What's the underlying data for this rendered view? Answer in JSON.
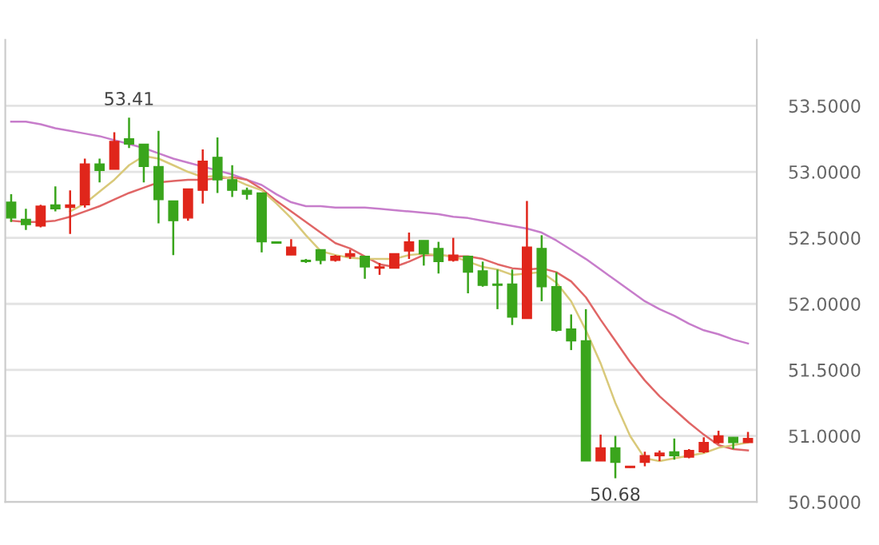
{
  "chart_data": {
    "type": "candlestick",
    "categories": [
      null,
      null,
      null,
      null,
      null,
      null,
      null,
      null,
      null,
      null,
      null,
      null,
      null,
      null,
      null,
      null,
      null,
      null,
      null,
      null,
      null,
      null,
      null,
      null,
      null,
      null,
      null,
      null,
      null,
      null,
      null,
      null,
      null,
      null,
      null,
      null,
      null,
      null,
      null,
      null,
      null,
      null,
      null,
      null,
      null,
      null,
      null,
      null,
      null,
      null,
      null
    ],
    "ohlc": [
      [
        52.77,
        52.83,
        52.62,
        52.65
      ],
      [
        52.64,
        52.72,
        52.56,
        52.6
      ],
      [
        52.59,
        52.75,
        52.58,
        52.74
      ],
      [
        52.75,
        52.89,
        52.7,
        52.72
      ],
      [
        52.73,
        52.86,
        52.53,
        52.75
      ],
      [
        52.75,
        53.1,
        52.73,
        53.06
      ],
      [
        53.06,
        53.1,
        52.92,
        53.01
      ],
      [
        53.02,
        53.3,
        53.02,
        53.23
      ],
      [
        53.25,
        53.41,
        53.18,
        53.21
      ],
      [
        53.21,
        53.21,
        52.92,
        53.04
      ],
      [
        53.04,
        53.31,
        52.61,
        52.79
      ],
      [
        52.78,
        52.78,
        52.37,
        52.63
      ],
      [
        52.65,
        52.87,
        52.63,
        52.87
      ],
      [
        52.86,
        53.17,
        52.76,
        53.08
      ],
      [
        53.11,
        53.26,
        52.84,
        52.94
      ],
      [
        52.94,
        53.05,
        52.81,
        52.86
      ],
      [
        52.86,
        52.88,
        52.79,
        52.83
      ],
      [
        52.84,
        52.84,
        52.39,
        52.47
      ],
      [
        52.47,
        52.47,
        52.46,
        52.46
      ],
      [
        52.37,
        52.49,
        52.37,
        52.43
      ],
      [
        52.33,
        52.34,
        52.31,
        52.32
      ],
      [
        52.41,
        52.41,
        52.3,
        52.33
      ],
      [
        52.33,
        52.37,
        52.32,
        52.36
      ],
      [
        52.36,
        52.41,
        52.34,
        52.38
      ],
      [
        52.36,
        52.36,
        52.19,
        52.28
      ],
      [
        52.27,
        52.31,
        52.22,
        52.28
      ],
      [
        52.27,
        52.38,
        52.27,
        52.38
      ],
      [
        52.4,
        52.54,
        52.34,
        52.47
      ],
      [
        52.48,
        52.48,
        52.29,
        52.38
      ],
      [
        52.42,
        52.47,
        52.23,
        52.32
      ],
      [
        52.33,
        52.5,
        52.32,
        52.37
      ],
      [
        52.36,
        52.36,
        52.08,
        52.24
      ],
      [
        52.25,
        52.32,
        52.13,
        52.14
      ],
      [
        52.15,
        52.26,
        51.96,
        52.14
      ],
      [
        52.15,
        52.26,
        51.84,
        51.9
      ],
      [
        51.89,
        52.78,
        51.89,
        52.43
      ],
      [
        52.42,
        52.52,
        52.02,
        52.13
      ],
      [
        52.13,
        52.24,
        51.79,
        51.8
      ],
      [
        51.81,
        51.92,
        51.65,
        51.72
      ],
      [
        51.72,
        51.96,
        50.81,
        50.81
      ],
      [
        50.81,
        51.01,
        50.81,
        50.91
      ],
      [
        50.91,
        51.0,
        50.68,
        50.8
      ],
      [
        50.76,
        50.77,
        50.76,
        50.77
      ],
      [
        50.8,
        50.88,
        50.77,
        50.85
      ],
      [
        50.85,
        50.89,
        50.81,
        50.87
      ],
      [
        50.88,
        50.98,
        50.82,
        50.85
      ],
      [
        50.84,
        50.9,
        50.83,
        50.89
      ],
      [
        50.88,
        50.99,
        50.87,
        50.95
      ],
      [
        50.95,
        51.04,
        50.94,
        51.0
      ],
      [
        50.99,
        50.99,
        50.9,
        50.95
      ],
      [
        50.95,
        51.03,
        50.95,
        50.98
      ]
    ],
    "colors": [
      "#3aa51c",
      "#3aa51c",
      "#e0261b",
      "#3aa51c",
      "#e0261b",
      "#e0261b",
      "#3aa51c",
      "#e0261b",
      "#3aa51c",
      "#3aa51c",
      "#3aa51c",
      "#3aa51c",
      "#e0261b",
      "#e0261b",
      "#3aa51c",
      "#3aa51c",
      "#3aa51c",
      "#3aa51c",
      "#3aa51c",
      "#e0261b",
      "#3aa51c",
      "#3aa51c",
      "#e0261b",
      "#e0261b",
      "#3aa51c",
      "#e0261b",
      "#e0261b",
      "#e0261b",
      "#3aa51c",
      "#3aa51c",
      "#e0261b",
      "#3aa51c",
      "#3aa51c",
      "#3aa51c",
      "#3aa51c",
      "#e0261b",
      "#3aa51c",
      "#3aa51c",
      "#3aa51c",
      "#3aa51c",
      "#e0261b",
      "#3aa51c",
      "#e0261b",
      "#e0261b",
      "#e0261b",
      "#3aa51c",
      "#e0261b",
      "#e0261b",
      "#e0261b",
      "#3aa51c",
      "#e0261b"
    ],
    "series": [
      {
        "type": "line",
        "color": "#c77dcb",
        "values": [
          53.38,
          53.38,
          53.36,
          53.33,
          53.31,
          53.29,
          53.27,
          53.24,
          53.21,
          53.18,
          53.14,
          53.1,
          53.07,
          53.04,
          53.01,
          52.98,
          52.94,
          52.9,
          52.83,
          52.77,
          52.74,
          52.74,
          52.73,
          52.73,
          52.73,
          52.72,
          52.71,
          52.7,
          52.69,
          52.68,
          52.66,
          52.65,
          52.63,
          52.61,
          52.59,
          52.57,
          52.54,
          52.48,
          52.41,
          52.34,
          52.26,
          52.18,
          52.1,
          52.02,
          51.96,
          51.91,
          51.85,
          51.8,
          51.77,
          51.73,
          51.7
        ]
      },
      {
        "type": "line",
        "color": "#e06666",
        "values": [
          52.63,
          52.62,
          52.62,
          52.63,
          52.66,
          52.7,
          52.74,
          52.79,
          52.84,
          52.88,
          52.92,
          52.93,
          52.94,
          52.94,
          52.95,
          52.96,
          52.94,
          52.87,
          52.78,
          52.7,
          52.62,
          52.54,
          52.46,
          52.42,
          52.36,
          52.3,
          52.28,
          52.32,
          52.37,
          52.37,
          52.36,
          52.36,
          52.34,
          52.3,
          52.27,
          52.26,
          52.27,
          52.24,
          52.17,
          52.05,
          51.88,
          51.72,
          51.56,
          51.42,
          51.3,
          51.2,
          51.1,
          51.01,
          50.93,
          50.9,
          50.89
        ]
      },
      {
        "type": "line",
        "color": "#d9c97a",
        "values": [
          null,
          null,
          null,
          null,
          52.7,
          52.76,
          52.85,
          52.94,
          53.05,
          53.12,
          53.1,
          53.05,
          53.0,
          52.96,
          52.97,
          52.95,
          52.9,
          52.86,
          52.76,
          52.65,
          52.52,
          52.4,
          52.37,
          52.35,
          52.34,
          52.34,
          52.34,
          52.37,
          52.38,
          52.37,
          52.36,
          52.32,
          52.28,
          52.26,
          52.22,
          52.23,
          52.24,
          52.16,
          52.02,
          51.8,
          51.55,
          51.25,
          51.0,
          50.83,
          50.81,
          50.83,
          50.85,
          50.87,
          50.91,
          50.93,
          50.95
        ]
      }
    ],
    "ylim": [
      50.5,
      54.0
    ],
    "yticks": [
      {
        "value": 50.5,
        "label": "50.5000"
      },
      {
        "value": 51.0,
        "label": "51.0000"
      },
      {
        "value": 51.5,
        "label": "51.5000"
      },
      {
        "value": 52.0,
        "label": "52.0000"
      },
      {
        "value": 52.5,
        "label": "52.5000"
      },
      {
        "value": 53.0,
        "label": "53.0000"
      },
      {
        "value": 53.5,
        "label": "53.5000"
      }
    ],
    "tick_labels": "y",
    "grid": "y",
    "annotations": [
      {
        "text": "53.41",
        "y": 53.41
      },
      {
        "text": "50.68",
        "y": 50.68
      }
    ]
  }
}
